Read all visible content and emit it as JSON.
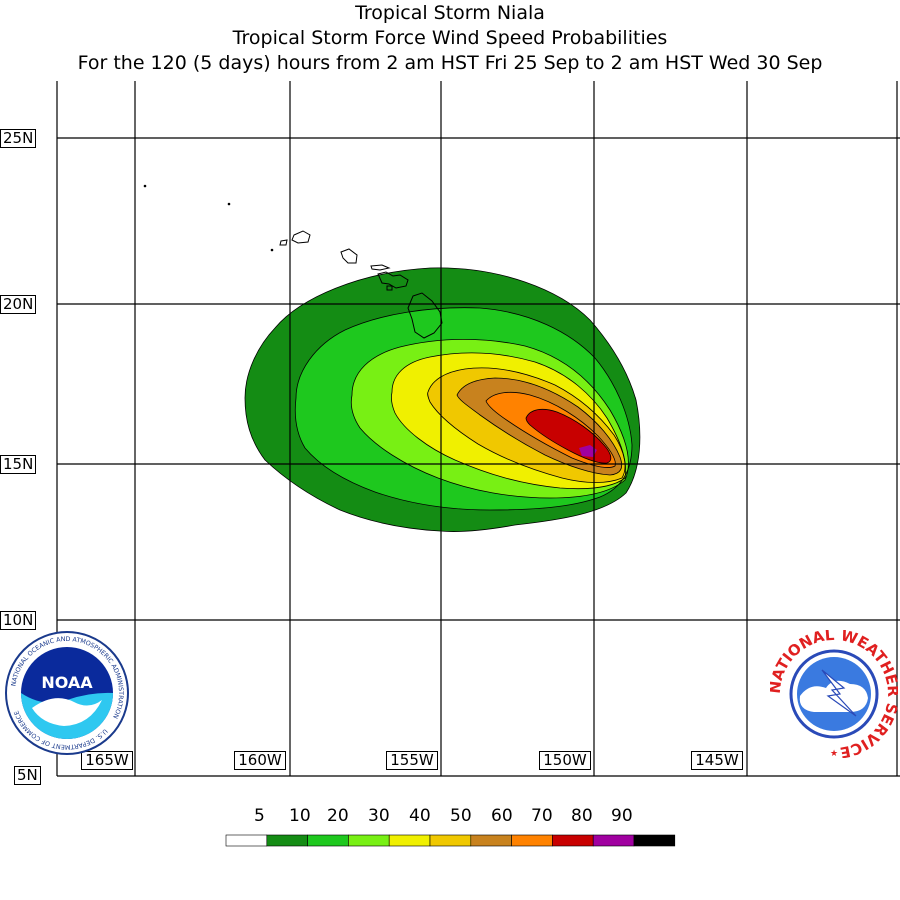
{
  "title": {
    "line1": "Tropical Storm Niala",
    "line2": "Tropical Storm Force Wind Speed Probabilities",
    "line3": "For the 120 (5 days) hours from 2 am HST Fri 25 Sep to 2 am HST Wed 30 Sep"
  },
  "lat_labels": [
    "25N",
    "20N",
    "15N",
    "10N",
    "5N"
  ],
  "lon_labels": [
    "165W",
    "160W",
    "155W",
    "150W",
    "145W"
  ],
  "legend": {
    "values": [
      "5",
      "10",
      "20",
      "30",
      "40",
      "50",
      "60",
      "70",
      "80",
      "90"
    ],
    "colors": [
      "#ffffff",
      "#148c14",
      "#1ec81e",
      "#78f014",
      "#f0f000",
      "#f0c800",
      "#c8821e",
      "#ff8200",
      "#c80000",
      "#a000a0",
      "#000000"
    ]
  },
  "logos": {
    "noaa": {
      "text": "NOAA",
      "ring": "NATIONAL OCEANIC AND ATMOSPHERIC ADMINISTRATION",
      "ring_bottom": "U.S. DEPARTMENT OF COMMERCE"
    },
    "nws": {
      "ring": "NATIONAL WEATHER SERVICE"
    }
  }
}
